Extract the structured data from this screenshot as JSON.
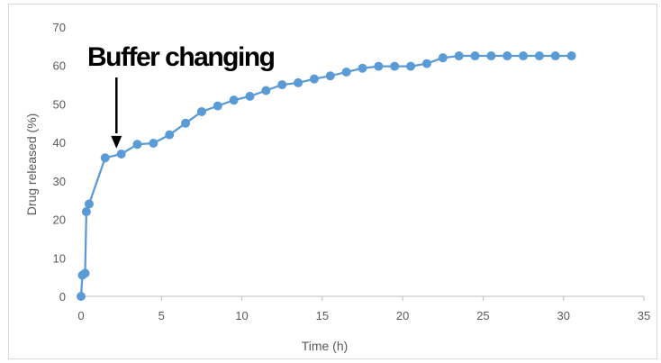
{
  "chart_data": {
    "type": "line",
    "title": "",
    "xlabel": "Time (h)",
    "ylabel": "Drug released (%)",
    "xlim": [
      0,
      35
    ],
    "ylim": [
      0,
      70
    ],
    "xticks": [
      0,
      5,
      10,
      15,
      20,
      25,
      30,
      35
    ],
    "yticks": [
      0,
      10,
      20,
      30,
      40,
      50,
      60,
      70
    ],
    "grid": false,
    "legend": "none",
    "color": "#5b9bd5",
    "series": [
      {
        "x": [
          0,
          0.083,
          0.25,
          0.33,
          0.5,
          1.5,
          2.5,
          3.5,
          4.5,
          5.5,
          6.5,
          7.5,
          8.5,
          9.5,
          10.5,
          11.5,
          12.5,
          13.5,
          14.5,
          15.5,
          16.5,
          17.5,
          18.5,
          19.5,
          20.5,
          21.5,
          22.5,
          23.5,
          24.5,
          25.5,
          26.5,
          27.5,
          28.5,
          29.5,
          30.5
        ],
        "y": [
          0,
          5.5,
          6,
          22,
          24,
          36,
          37,
          39.5,
          39.8,
          42,
          45,
          48,
          49.5,
          51,
          52,
          53.5,
          55,
          55.5,
          56.5,
          57.3,
          58.3,
          59.3,
          59.8,
          59.8,
          59.8,
          60.5,
          62,
          62.5,
          62.5,
          62.5,
          62.5,
          62.5,
          62.5,
          62.5,
          62.5
        ]
      }
    ],
    "annotations": [
      {
        "text": "Buffer changing",
        "x": 2.2,
        "y": 37.5
      }
    ]
  }
}
